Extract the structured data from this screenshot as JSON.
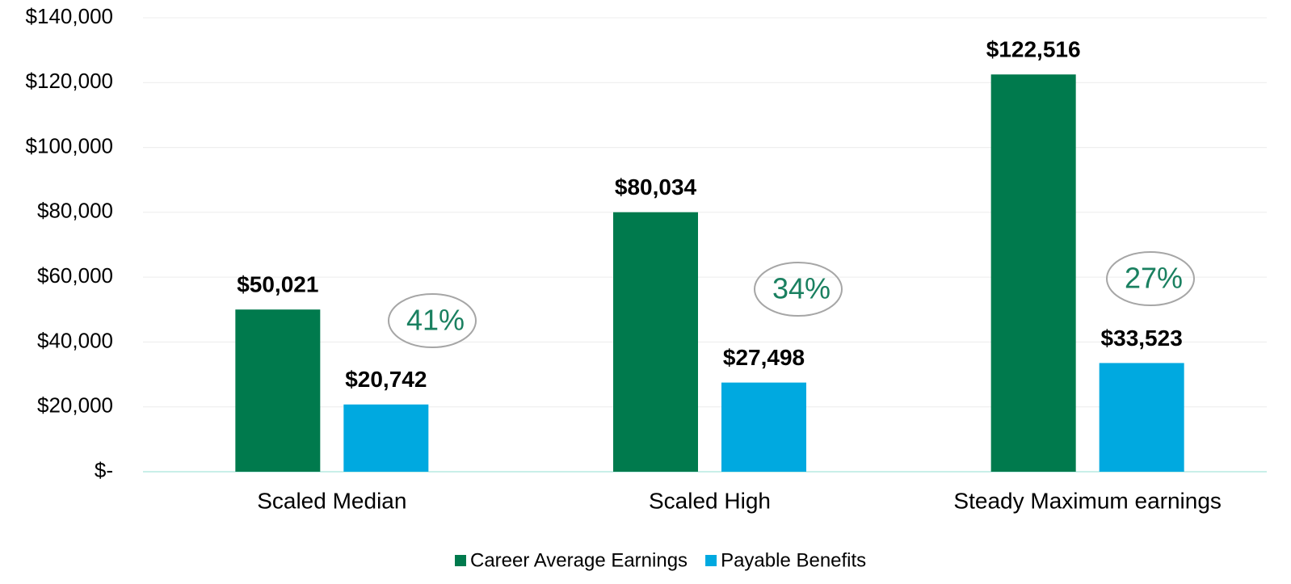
{
  "chart_data": {
    "type": "bar",
    "categories": [
      "Scaled Median",
      "Scaled High",
      "Steady Maximum earnings"
    ],
    "series": [
      {
        "name": "Career Average Earnings",
        "color": "#007a4d",
        "values": [
          50021,
          80034,
          122516
        ],
        "value_labels": [
          "$50,021",
          "$80,034",
          "$122,516"
        ]
      },
      {
        "name": "Payable Benefits",
        "color": "#00a9e0",
        "values": [
          20742,
          27498,
          33523
        ],
        "value_labels": [
          "$20,742",
          "$27,498",
          "$33,523"
        ]
      }
    ],
    "annotations": [
      "41%",
      "34%",
      "27%"
    ],
    "ylim": [
      0,
      140000
    ],
    "yticks": [
      {
        "value": 0,
        "label": "$-"
      },
      {
        "value": 20000,
        "label": "$20,000"
      },
      {
        "value": 40000,
        "label": "$40,000"
      },
      {
        "value": 60000,
        "label": "$60,000"
      },
      {
        "value": 80000,
        "label": "$80,000"
      },
      {
        "value": 100000,
        "label": "$100,000"
      },
      {
        "value": 120000,
        "label": "$120,000"
      },
      {
        "value": 140000,
        "label": "$140,000"
      }
    ],
    "grid": true,
    "legend": "bottom"
  }
}
